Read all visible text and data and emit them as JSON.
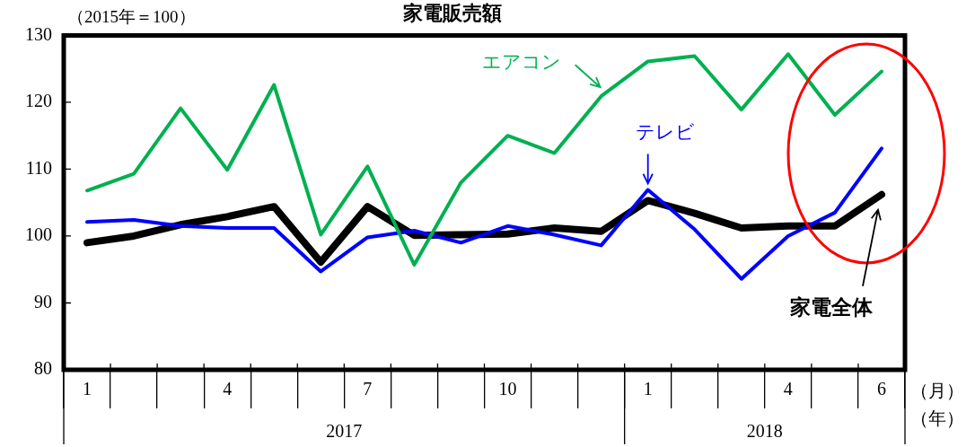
{
  "chart_data": {
    "type": "line",
    "title": "家電販売額",
    "ylabel": "（2015年＝100）",
    "xlabel": "（月）",
    "categories": [
      "1",
      null,
      null,
      "4",
      null,
      null,
      "7",
      null,
      null,
      "10",
      null,
      null,
      "1",
      null,
      null,
      "4",
      null,
      "6"
    ],
    "series": [
      {
        "name": "エアコン",
        "color": "#00b050",
        "values": [
          106.8,
          109.3,
          119.1,
          109.9,
          122.6,
          100.2,
          110.4,
          95.7,
          108.0,
          115.0,
          112.4,
          120.9,
          126.1,
          126.9,
          118.9,
          127.2,
          118.1,
          124.6
        ]
      },
      {
        "name": "テレビ",
        "color": "#0000ff",
        "values": [
          102.1,
          102.4,
          101.5,
          101.2,
          101.2,
          94.7,
          99.8,
          100.8,
          99.0,
          101.5,
          100.2,
          98.6,
          106.9,
          101.0,
          93.6,
          100.0,
          103.5,
          113.1
        ]
      },
      {
        "name": "家電全体",
        "color": "#000000",
        "values": [
          99.0,
          100.0,
          101.7,
          102.9,
          104.4,
          96.1,
          104.4,
          100.1,
          100.2,
          100.3,
          101.2,
          100.7,
          105.3,
          103.4,
          101.2,
          101.5,
          101.5,
          106.2
        ]
      }
    ],
    "ylim": [
      80,
      130
    ],
    "yticks": [
      80,
      90,
      100,
      110,
      120,
      130
    ],
    "line_style": "solid",
    "annotations": [
      "2017",
      "2018",
      "（年）"
    ]
  }
}
